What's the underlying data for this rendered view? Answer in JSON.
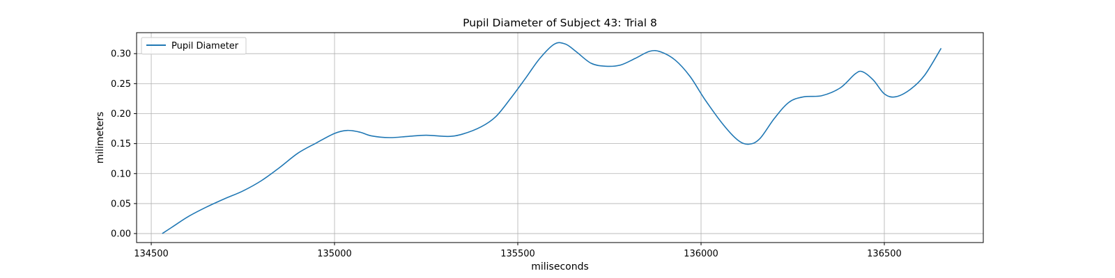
{
  "chart_data": {
    "type": "line",
    "title": "Pupil Diameter of Subject 43: Trial 8",
    "xlabel": "miliseconds",
    "ylabel": "milimeters",
    "xlim": [
      134460,
      136770
    ],
    "ylim": [
      -0.015,
      0.335
    ],
    "xticks": [
      134500,
      135000,
      135500,
      136000,
      136500
    ],
    "yticks": [
      0.0,
      0.05,
      0.1,
      0.15,
      0.2,
      0.25,
      0.3
    ],
    "ytick_labels": [
      "0.00",
      "0.05",
      "0.10",
      "0.15",
      "0.20",
      "0.25",
      "0.30"
    ],
    "xtick_labels": [
      "134500",
      "135000",
      "135500",
      "136000",
      "136500"
    ],
    "grid": true,
    "legend_position": "top-left",
    "series": [
      {
        "name": "Pupil Diameter",
        "color": "#1f77b4",
        "points": [
          [
            134530,
            0.0
          ],
          [
            134560,
            0.012
          ],
          [
            134600,
            0.028
          ],
          [
            134650,
            0.044
          ],
          [
            134700,
            0.058
          ],
          [
            134750,
            0.071
          ],
          [
            134800,
            0.088
          ],
          [
            134850,
            0.11
          ],
          [
            134900,
            0.134
          ],
          [
            134950,
            0.151
          ],
          [
            135000,
            0.167
          ],
          [
            135035,
            0.172
          ],
          [
            135070,
            0.169
          ],
          [
            135100,
            0.163
          ],
          [
            135150,
            0.16
          ],
          [
            135200,
            0.162
          ],
          [
            135250,
            0.164
          ],
          [
            135310,
            0.162
          ],
          [
            135350,
            0.166
          ],
          [
            135400,
            0.178
          ],
          [
            135440,
            0.195
          ],
          [
            135480,
            0.225
          ],
          [
            135520,
            0.258
          ],
          [
            135560,
            0.292
          ],
          [
            135600,
            0.316
          ],
          [
            135630,
            0.316
          ],
          [
            135660,
            0.303
          ],
          [
            135700,
            0.284
          ],
          [
            135740,
            0.279
          ],
          [
            135780,
            0.281
          ],
          [
            135820,
            0.292
          ],
          [
            135860,
            0.304
          ],
          [
            135890,
            0.303
          ],
          [
            135930,
            0.289
          ],
          [
            135970,
            0.262
          ],
          [
            136010,
            0.224
          ],
          [
            136060,
            0.182
          ],
          [
            136100,
            0.156
          ],
          [
            136130,
            0.149
          ],
          [
            136160,
            0.158
          ],
          [
            136200,
            0.192
          ],
          [
            136240,
            0.219
          ],
          [
            136280,
            0.228
          ],
          [
            136330,
            0.23
          ],
          [
            136380,
            0.243
          ],
          [
            136420,
            0.266
          ],
          [
            136440,
            0.27
          ],
          [
            136470,
            0.256
          ],
          [
            136500,
            0.233
          ],
          [
            136530,
            0.228
          ],
          [
            136570,
            0.24
          ],
          [
            136610,
            0.264
          ],
          [
            136655,
            0.309
          ]
        ]
      }
    ]
  }
}
